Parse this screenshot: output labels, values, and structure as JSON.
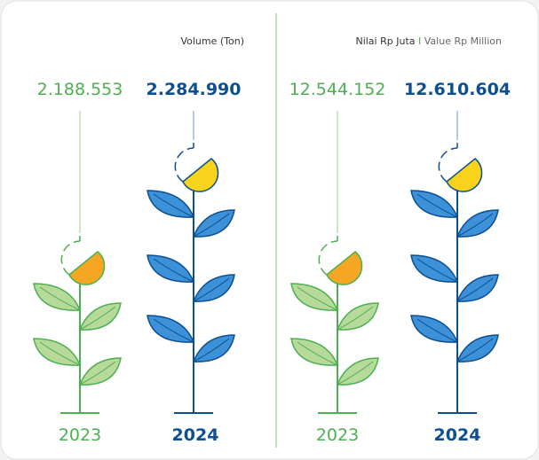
{
  "panels": [
    {
      "title": "Volume (Ton)",
      "items": [
        {
          "value": "2.188.553",
          "year": "2023"
        },
        {
          "value": "2.284.990",
          "year": "2024"
        }
      ]
    },
    {
      "title": "Nilai Rp Juta",
      "separator": "I",
      "subtitle": "Value Rp Million",
      "items": [
        {
          "value": "12.544.152",
          "year": "2023"
        },
        {
          "value": "12.610.604",
          "year": "2024"
        }
      ]
    }
  ]
}
